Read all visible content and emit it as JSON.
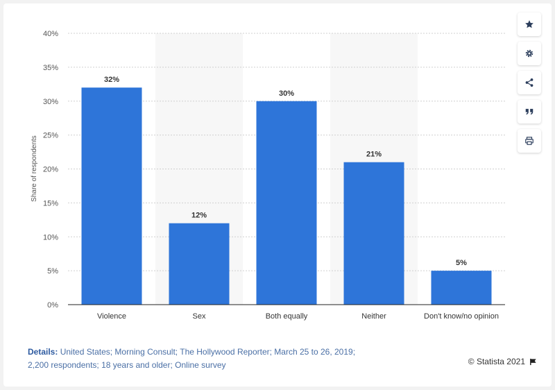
{
  "chart_data": {
    "type": "bar",
    "categories": [
      "Violence",
      "Sex",
      "Both equally",
      "Neither",
      "Don't know/no opinion"
    ],
    "values": [
      32,
      12,
      30,
      21,
      5
    ],
    "value_labels": [
      "32%",
      "12%",
      "30%",
      "21%",
      "5%"
    ],
    "ylabel": "Share of respondents",
    "ylim": [
      0,
      40
    ],
    "yticks": [
      "0%",
      "5%",
      "10%",
      "15%",
      "20%",
      "25%",
      "30%",
      "35%",
      "40%"
    ],
    "grid": true,
    "bar_color": "#2e75d9"
  },
  "footer": {
    "details_label": "Details:",
    "details_line1": "United States; Morning Consult; The Hollywood Reporter; March 25 to 26, 2019;",
    "details_line2": "2,200 respondents; 18 years and older; Online survey",
    "copyright": "© Statista 2021"
  },
  "sidebar": {
    "icons": [
      "star-icon",
      "gear-icon",
      "share-icon",
      "quote-icon",
      "print-icon"
    ]
  }
}
